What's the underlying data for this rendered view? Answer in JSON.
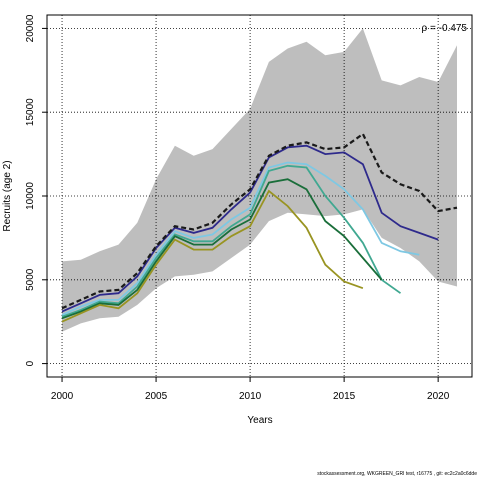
{
  "chart_data": {
    "type": "line",
    "xlabel": "Years",
    "ylabel": "Recruits (age 2)",
    "annotation": "ρ = -0.475",
    "xlim": [
      1999.2,
      2021.8
    ],
    "ylim": [
      -800,
      20800
    ],
    "x_ticks": [
      2000,
      2005,
      2010,
      2015,
      2020
    ],
    "y_ticks": [
      0,
      5000,
      10000,
      15000,
      20000
    ],
    "grid": true,
    "band": {
      "color": "#bebebe",
      "x": [
        2000,
        2001,
        2002,
        2003,
        2004,
        2005,
        2006,
        2007,
        2008,
        2009,
        2010,
        2011,
        2012,
        2013,
        2014,
        2015,
        2016,
        2017,
        2018,
        2019,
        2020,
        2021
      ],
      "upper": [
        6100,
        6200,
        6700,
        7100,
        8400,
        11000,
        13000,
        12400,
        12800,
        14000,
        15200,
        18000,
        18800,
        19200,
        18400,
        18600,
        20000,
        16900,
        16600,
        17100,
        16800,
        19000
      ],
      "lower": [
        1900,
        2400,
        2700,
        2800,
        3500,
        4500,
        5200,
        5300,
        5500,
        6300,
        7100,
        8500,
        9000,
        8900,
        8800,
        8900,
        9200,
        7500,
        6900,
        6100,
        4900,
        4600
      ]
    },
    "series": [
      {
        "color": "#1a1a1a",
        "dashed": true,
        "x": [
          2000,
          2001,
          2002,
          2003,
          2004,
          2005,
          2006,
          2007,
          2008,
          2009,
          2010,
          2011,
          2012,
          2013,
          2014,
          2015,
          2016,
          2017,
          2018,
          2019,
          2020,
          2021
        ],
        "values": [
          3300,
          3800,
          4300,
          4400,
          5400,
          7000,
          8200,
          8000,
          8400,
          9500,
          10400,
          12400,
          13000,
          13200,
          12800,
          12900,
          13700,
          11400,
          10700,
          10300,
          9100,
          9300
        ]
      },
      {
        "color": "#2e2a8c",
        "dashed": false,
        "x": [
          2000,
          2001,
          2002,
          2003,
          2004,
          2005,
          2006,
          2007,
          2008,
          2009,
          2010,
          2011,
          2012,
          2013,
          2014,
          2015,
          2016,
          2017,
          2018,
          2019,
          2020
        ],
        "values": [
          3100,
          3600,
          4100,
          4200,
          5200,
          6900,
          8100,
          7800,
          8100,
          9200,
          10200,
          12300,
          12900,
          13000,
          12500,
          12600,
          11900,
          9000,
          8200,
          7800,
          7400
        ]
      },
      {
        "color": "#7ec8e3",
        "dashed": false,
        "x": [
          2000,
          2001,
          2002,
          2003,
          2004,
          2005,
          2006,
          2007,
          2008,
          2009,
          2010,
          2011,
          2012,
          2013,
          2014,
          2015,
          2016,
          2017,
          2018,
          2019
        ],
        "values": [
          2900,
          3400,
          3800,
          3800,
          4800,
          6500,
          7900,
          7500,
          7700,
          8600,
          9300,
          11700,
          12000,
          11900,
          11200,
          10400,
          9200,
          7200,
          6700,
          6500
        ]
      },
      {
        "color": "#40a891",
        "dashed": false,
        "x": [
          2000,
          2001,
          2002,
          2003,
          2004,
          2005,
          2006,
          2007,
          2008,
          2009,
          2010,
          2011,
          2012,
          2013,
          2014,
          2015,
          2016,
          2017,
          2018
        ],
        "values": [
          2800,
          3200,
          3700,
          3600,
          4600,
          6300,
          7700,
          7300,
          7300,
          8200,
          8900,
          11500,
          11800,
          11700,
          10000,
          8700,
          7200,
          5000,
          4200
        ]
      },
      {
        "color": "#1a6e3a",
        "dashed": false,
        "x": [
          2000,
          2001,
          2002,
          2003,
          2004,
          2005,
          2006,
          2007,
          2008,
          2009,
          2010,
          2011,
          2012,
          2013,
          2014,
          2015,
          2016,
          2017
        ],
        "values": [
          2700,
          3100,
          3600,
          3500,
          4400,
          6100,
          7600,
          7100,
          7100,
          8000,
          8600,
          10800,
          11000,
          10400,
          8500,
          7600,
          6300,
          5000
        ]
      },
      {
        "color": "#999422",
        "dashed": false,
        "x": [
          2000,
          2001,
          2002,
          2003,
          2004,
          2005,
          2006,
          2007,
          2008,
          2009,
          2010,
          2011,
          2012,
          2013,
          2014,
          2015,
          2016
        ],
        "values": [
          2500,
          3000,
          3500,
          3300,
          4200,
          5900,
          7400,
          6800,
          6800,
          7600,
          8200,
          10300,
          9400,
          8100,
          5900,
          4900,
          4500
        ]
      }
    ]
  },
  "footer": "stockassessment.org, WKGREEN_GRI test, r16775 , git: ec2c2a0c6dde"
}
